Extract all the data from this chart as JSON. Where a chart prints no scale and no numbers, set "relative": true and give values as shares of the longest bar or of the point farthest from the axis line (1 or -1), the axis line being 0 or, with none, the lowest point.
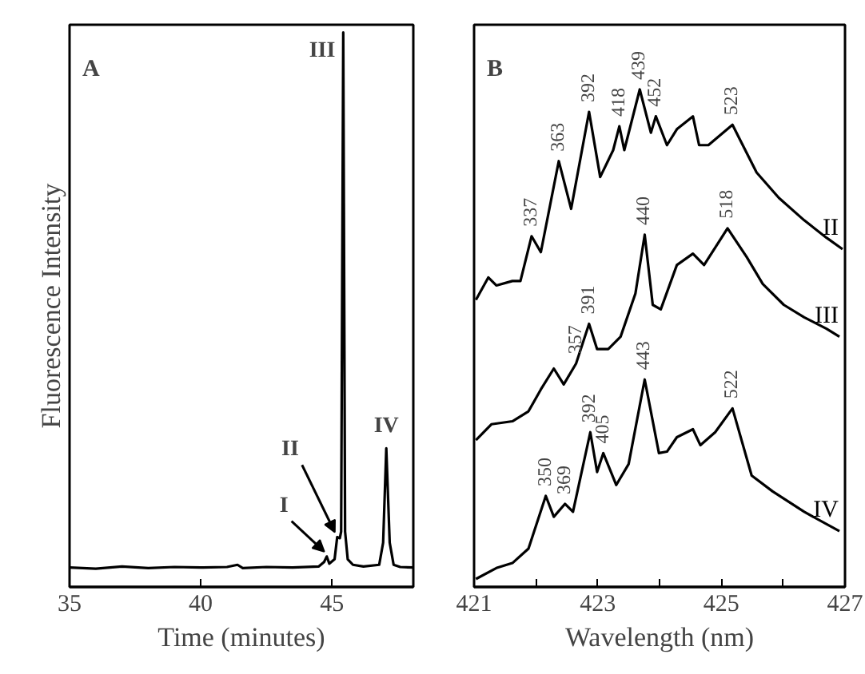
{
  "chart_data": [
    {
      "type": "line",
      "relative": true,
      "ylabel": "Fluorescence Intensity",
      "xlabel": "Time (minutes)",
      "xlim": [
        35,
        48.1
      ],
      "xticks": [
        35,
        40,
        45
      ],
      "legend": false,
      "grid": false,
      "series": [
        {
          "color": "#000000",
          "x": [
            35,
            36,
            37,
            38,
            39,
            40,
            41,
            41.4,
            41.6,
            42.5,
            43.5,
            44.5,
            44.7,
            44.8,
            44.9,
            45.1,
            45.2,
            45.3,
            45.35,
            45.43,
            45.5,
            45.6,
            45.8,
            46.2,
            46.8,
            46.95,
            47.07,
            47.2,
            47.35,
            47.6,
            48.1
          ],
          "values": [
            0.035,
            0.033,
            0.037,
            0.034,
            0.036,
            0.035,
            0.036,
            0.04,
            0.034,
            0.036,
            0.035,
            0.037,
            0.045,
            0.055,
            0.042,
            0.05,
            0.09,
            0.088,
            0.1,
            1.0,
            0.1,
            0.05,
            0.04,
            0.037,
            0.04,
            0.08,
            0.25,
            0.08,
            0.04,
            0.036,
            0.035
          ]
        }
      ],
      "annotations": [
        "A",
        {
          "text": "I",
          "x": 44.8,
          "y": 0.055
        },
        {
          "text": "II",
          "x": 45.2,
          "y": 0.09
        },
        {
          "text": "III",
          "x": 45.43,
          "y": 1.0
        },
        {
          "text": "IV",
          "x": 47.07,
          "y": 0.25
        }
      ]
    },
    {
      "type": "line",
      "relative": true,
      "xlabel": "Wavelength (nm)",
      "xlim": [
        421,
        427
      ],
      "xticks": [
        421,
        {
          "value": 422,
          "label": null
        },
        423,
        {
          "value": 424,
          "label": null
        },
        425,
        {
          "value": 426,
          "label": null
        },
        427
      ],
      "legend": false,
      "grid": false,
      "series": [
        {
          "name": "II",
          "color": "#000000",
          "x": [
            421.03,
            421.23,
            421.36,
            421.62,
            421.75,
            421.93,
            422.08,
            422.37,
            422.57,
            422.86,
            423.04,
            423.25,
            423.35,
            423.43,
            423.68,
            423.86,
            423.94,
            424.12,
            424.28,
            424.54,
            424.64,
            424.79,
            425.18,
            425.31,
            425.57,
            425.93,
            426.34,
            426.7,
            426.96
          ],
          "values": [
            0.577,
            0.622,
            0.606,
            0.615,
            0.615,
            0.705,
            0.673,
            0.856,
            0.76,
            0.955,
            0.824,
            0.878,
            0.926,
            0.878,
            1.0,
            0.913,
            0.946,
            0.888,
            0.92,
            0.946,
            0.888,
            0.888,
            0.929,
            0.897,
            0.833,
            0.782,
            0.737,
            0.702,
            0.679
          ]
        },
        {
          "name": "III",
          "color": "#000000",
          "x": [
            421.03,
            421.28,
            421.62,
            421.88,
            422.08,
            422.29,
            422.45,
            422.65,
            422.86,
            422.99,
            423.17,
            423.37,
            423.61,
            423.76,
            423.89,
            424.02,
            424.28,
            424.54,
            424.72,
            425.1,
            425.41,
            425.67,
            426.01,
            426.34,
            426.7,
            426.91
          ],
          "values": [
            0.295,
            0.327,
            0.333,
            0.353,
            0.397,
            0.439,
            0.407,
            0.449,
            0.529,
            0.478,
            0.478,
            0.503,
            0.59,
            0.708,
            0.567,
            0.558,
            0.647,
            0.67,
            0.647,
            0.721,
            0.663,
            0.609,
            0.567,
            0.542,
            0.519,
            0.503
          ]
        },
        {
          "name": "IV",
          "color": "#000000",
          "x": [
            421.03,
            421.36,
            421.62,
            421.88,
            422.16,
            422.29,
            422.47,
            422.6,
            422.88,
            422.99,
            423.09,
            423.3,
            423.5,
            423.76,
            423.99,
            424.12,
            424.28,
            424.54,
            424.66,
            424.9,
            425.18,
            425.49,
            425.83,
            426.34,
            426.91
          ],
          "values": [
            0.016,
            0.038,
            0.048,
            0.077,
            0.183,
            0.141,
            0.167,
            0.151,
            0.311,
            0.231,
            0.269,
            0.205,
            0.247,
            0.417,
            0.269,
            0.272,
            0.301,
            0.317,
            0.285,
            0.311,
            0.359,
            0.224,
            0.192,
            0.151,
            0.112
          ]
        }
      ],
      "annotations": [
        "B",
        {
          "text": "337",
          "x": 421.93,
          "y": 0.705
        },
        {
          "text": "363",
          "x": 422.37,
          "y": 0.856
        },
        {
          "text": "392",
          "x": 422.86,
          "y": 0.955
        },
        {
          "text": "418",
          "x": 423.35,
          "y": 0.926
        },
        {
          "text": "439",
          "x": 423.68,
          "y": 1.0
        },
        {
          "text": "452",
          "x": 423.94,
          "y": 0.946
        },
        {
          "text": "523",
          "x": 425.18,
          "y": 0.929
        },
        {
          "text": "357",
          "x": 422.65,
          "y": 0.449
        },
        {
          "text": "391",
          "x": 422.86,
          "y": 0.529
        },
        {
          "text": "440",
          "x": 423.76,
          "y": 0.708
        },
        {
          "text": "518",
          "x": 425.1,
          "y": 0.721
        },
        {
          "text": "350",
          "x": 422.16,
          "y": 0.183
        },
        {
          "text": "369",
          "x": 422.47,
          "y": 0.167
        },
        {
          "text": "392",
          "x": 422.88,
          "y": 0.311
        },
        {
          "text": "405",
          "x": 423.09,
          "y": 0.269
        },
        {
          "text": "443",
          "x": 423.76,
          "y": 0.417
        },
        {
          "text": "522",
          "x": 425.18,
          "y": 0.359
        }
      ]
    }
  ]
}
